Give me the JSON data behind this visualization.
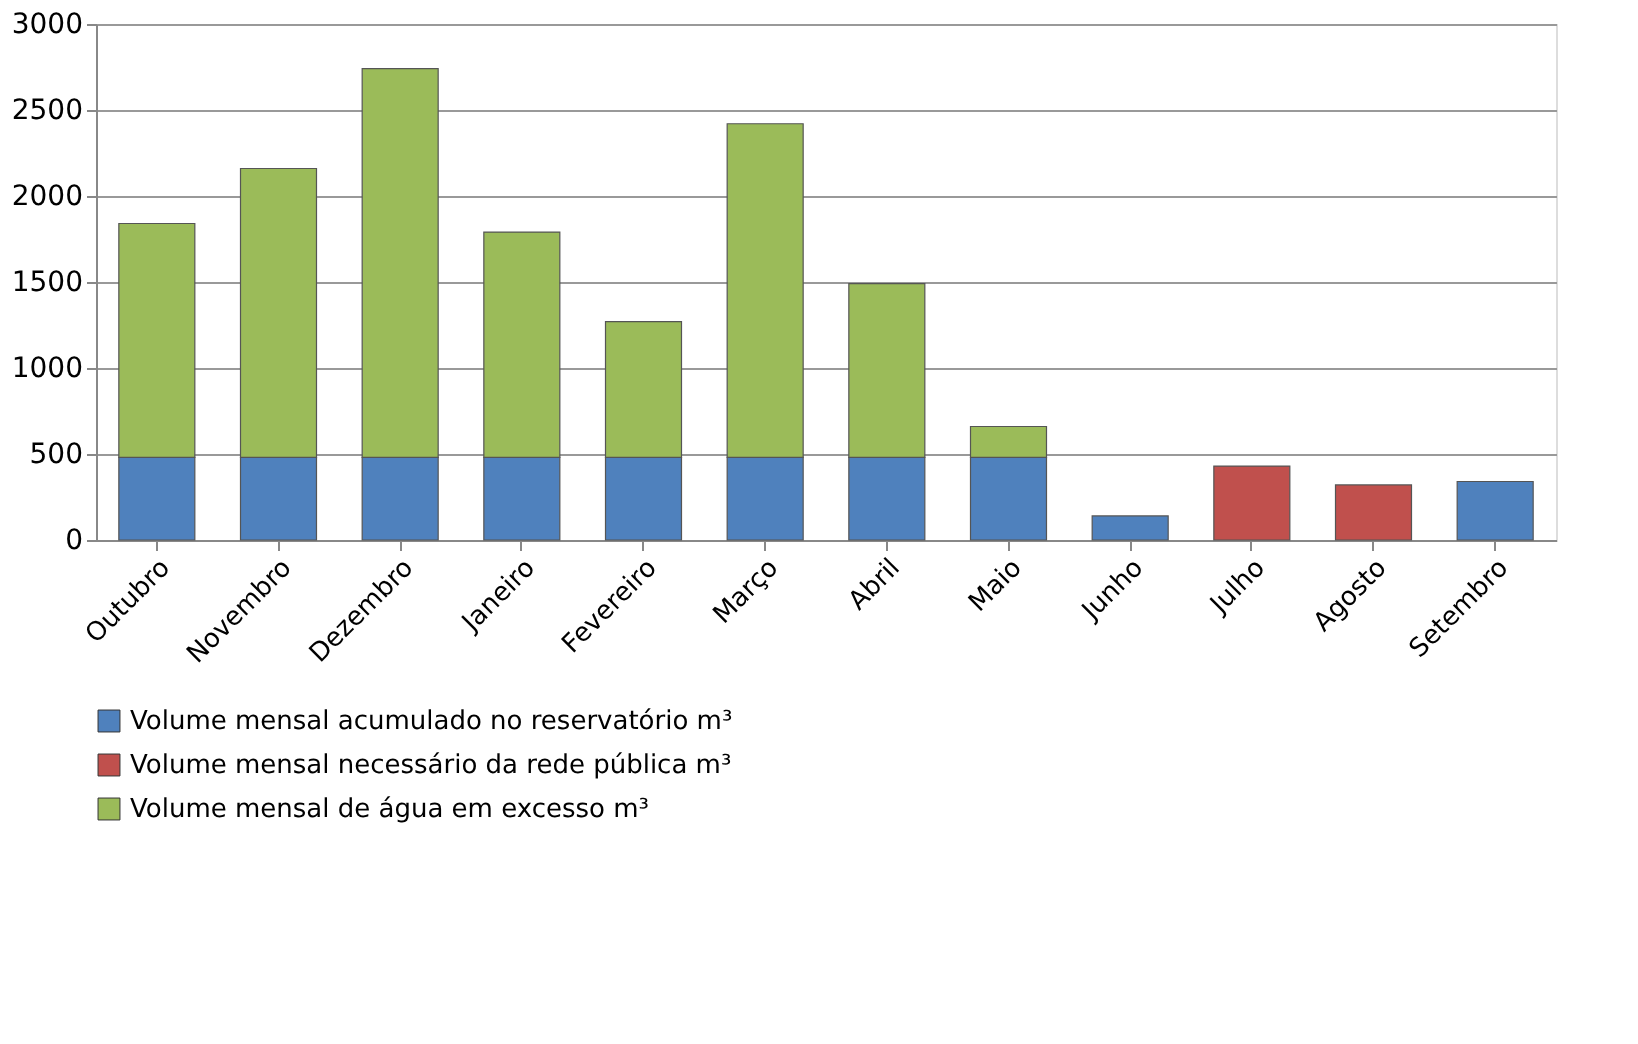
{
  "chart_data": {
    "type": "bar",
    "stacked": true,
    "categories": [
      "Outubro",
      "Novembro",
      "Dezembro",
      "Janeiro",
      "Fevereiro",
      "Março",
      "Abril",
      "Maio",
      "Junho",
      "Julho",
      "Agosto",
      "Setembro"
    ],
    "series": [
      {
        "name": "Volume mensal acumulado no reservatório m³",
        "color": "#4f81bd",
        "values": [
          480,
          480,
          480,
          480,
          480,
          480,
          480,
          480,
          140,
          null,
          null,
          340
        ]
      },
      {
        "name": "Volume mensal necessário da rede pública m³",
        "color": "#c0504d",
        "values": [
          null,
          null,
          null,
          null,
          null,
          null,
          null,
          null,
          null,
          430,
          320,
          null
        ]
      },
      {
        "name": "Volume mensal de água em excesso m³",
        "color": "#9bbb59",
        "values": [
          1360,
          1680,
          2260,
          1310,
          790,
          1940,
          1010,
          180,
          null,
          null,
          null,
          null
        ]
      }
    ],
    "ylim": [
      0,
      3000
    ],
    "yticks": [
      0,
      500,
      1000,
      1500,
      2000,
      2500,
      3000
    ],
    "grid": "y",
    "legend": "bottom"
  }
}
